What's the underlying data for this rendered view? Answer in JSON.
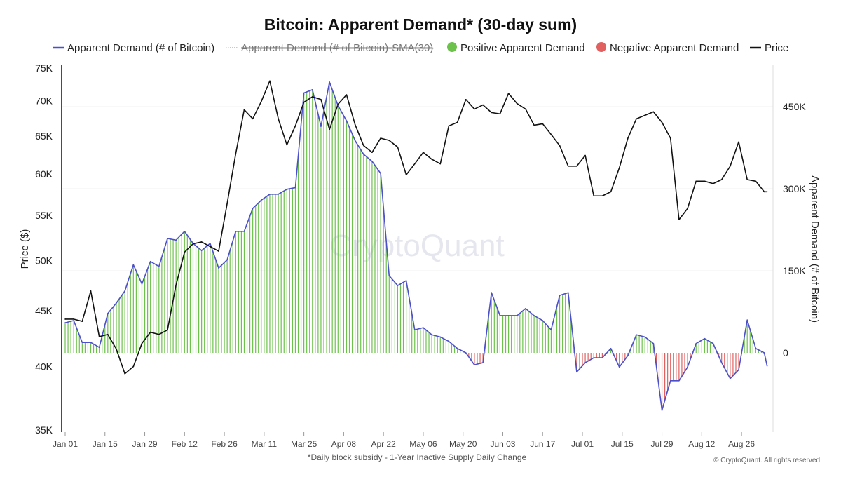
{
  "chart_data": {
    "type": "line",
    "title": "Bitcoin: Apparent Demand* (30-day sum)",
    "footnote": "*Daily block subsidy - 1-Year Inactive Supply Daily Change",
    "copyright": "© CryptoQuant. All rights reserved",
    "watermark": "CryptoQuant",
    "legend": [
      {
        "label": "Apparent Demand (# of Bitcoin)",
        "color": "#4b4fc9",
        "marker": "line"
      },
      {
        "label": "Apparent Demand (# of Bitcoin)-SMA(30)",
        "color": "#b5b5b5",
        "marker": "dotted-line",
        "disabled": true
      },
      {
        "label": "Positive Apparent Demand",
        "color": "#6cc24a",
        "marker": "circle"
      },
      {
        "label": "Negative Apparent Demand",
        "color": "#e0615f",
        "marker": "circle"
      },
      {
        "label": "Price",
        "color": "#111111",
        "marker": "line"
      }
    ],
    "legend_position": "top",
    "x_ticks": [
      "Jan 01",
      "Jan 15",
      "Jan 29",
      "Feb 12",
      "Feb 26",
      "Mar 11",
      "Mar 25",
      "Apr 08",
      "Apr 22",
      "May 06",
      "May 20",
      "Jun 03",
      "Jun 17",
      "Jul 01",
      "Jul 15",
      "Jul 29",
      "Aug 12",
      "Aug 26"
    ],
    "x_tick_dates": [
      "2024-01-01",
      "2024-01-15",
      "2024-01-29",
      "2024-02-12",
      "2024-02-26",
      "2024-03-11",
      "2024-03-25",
      "2024-04-08",
      "2024-04-22",
      "2024-05-06",
      "2024-05-20",
      "2024-06-03",
      "2024-06-17",
      "2024-07-01",
      "2024-07-15",
      "2024-07-29",
      "2024-08-12",
      "2024-08-26"
    ],
    "y_left": {
      "label": "Price ($)",
      "scale": "log",
      "range": [
        35000,
        75000
      ],
      "ticks": [
        "35K",
        "40K",
        "45K",
        "50K",
        "55K",
        "60K",
        "65K",
        "70K",
        "75K"
      ],
      "tick_values": [
        35000,
        40000,
        45000,
        50000,
        55000,
        60000,
        65000,
        70000,
        75000
      ]
    },
    "y_right": {
      "label": "Apparent Demand (# of Bitcoin)",
      "scale": "linear",
      "ticks": [
        "0",
        "150K",
        "300K",
        "450K"
      ],
      "tick_values": [
        0,
        150000,
        300000,
        450000
      ]
    },
    "grid": true,
    "x": [
      "2024-01-01",
      "2024-01-04",
      "2024-01-07",
      "2024-01-10",
      "2024-01-13",
      "2024-01-16",
      "2024-01-19",
      "2024-01-22",
      "2024-01-25",
      "2024-01-28",
      "2024-01-31",
      "2024-02-03",
      "2024-02-06",
      "2024-02-09",
      "2024-02-12",
      "2024-02-15",
      "2024-02-18",
      "2024-02-21",
      "2024-02-24",
      "2024-02-27",
      "2024-03-01",
      "2024-03-04",
      "2024-03-07",
      "2024-03-10",
      "2024-03-13",
      "2024-03-16",
      "2024-03-19",
      "2024-03-22",
      "2024-03-25",
      "2024-03-28",
      "2024-03-31",
      "2024-04-03",
      "2024-04-06",
      "2024-04-09",
      "2024-04-12",
      "2024-04-15",
      "2024-04-18",
      "2024-04-21",
      "2024-04-24",
      "2024-04-27",
      "2024-04-30",
      "2024-05-03",
      "2024-05-06",
      "2024-05-09",
      "2024-05-12",
      "2024-05-15",
      "2024-05-18",
      "2024-05-21",
      "2024-05-24",
      "2024-05-27",
      "2024-05-30",
      "2024-06-02",
      "2024-06-05",
      "2024-06-08",
      "2024-06-11",
      "2024-06-14",
      "2024-06-17",
      "2024-06-20",
      "2024-06-23",
      "2024-06-26",
      "2024-06-29",
      "2024-07-02",
      "2024-07-05",
      "2024-07-08",
      "2024-07-11",
      "2024-07-14",
      "2024-07-17",
      "2024-07-20",
      "2024-07-23",
      "2024-07-26",
      "2024-07-29",
      "2024-08-01",
      "2024-08-04",
      "2024-08-07",
      "2024-08-10",
      "2024-08-13",
      "2024-08-16",
      "2024-08-19",
      "2024-08-22",
      "2024-08-25",
      "2024-08-28",
      "2024-08-31",
      "2024-09-03",
      "2024-09-04"
    ],
    "series": [
      {
        "name": "Apparent Demand (# of Bitcoin)",
        "axis": "right",
        "values": [
          55000,
          59000,
          19000,
          19000,
          10000,
          72000,
          91000,
          113000,
          161000,
          126000,
          167000,
          158000,
          209000,
          206000,
          222000,
          200000,
          187000,
          200000,
          155000,
          170000,
          222000,
          222000,
          264000,
          279000,
          290000,
          290000,
          299000,
          302000,
          475000,
          481000,
          414000,
          495000,
          452000,
          424000,
          388000,
          363000,
          350000,
          328000,
          141000,
          123000,
          132000,
          42000,
          46000,
          33000,
          29000,
          21000,
          8000,
          0,
          -22000,
          -18000,
          110000,
          68000,
          68000,
          68000,
          81000,
          68000,
          59000,
          42000,
          105000,
          110000,
          -35000,
          -18000,
          -9000,
          -9000,
          8000,
          -26000,
          -5000,
          33000,
          29000,
          17000,
          -105000,
          -51000,
          -51000,
          -26000,
          17000,
          26000,
          17000,
          -18000,
          -47000,
          -31000,
          60000,
          8000,
          0,
          -24000
        ]
      },
      {
        "name": "Price",
        "axis": "left",
        "values": [
          44200,
          44200,
          44000,
          46900,
          42600,
          42800,
          41500,
          39400,
          40000,
          42000,
          43000,
          42800,
          43200,
          47500,
          50900,
          51800,
          52000,
          51500,
          51000,
          56400,
          62600,
          68700,
          67400,
          69900,
          73000,
          67400,
          63800,
          66400,
          69800,
          70600,
          70200,
          65900,
          69500,
          70900,
          66600,
          63700,
          62800,
          64700,
          64400,
          63500,
          59900,
          61300,
          62800,
          61900,
          61300,
          66400,
          66900,
          70200,
          68800,
          69400,
          68300,
          68100,
          71100,
          69600,
          68800,
          66500,
          66700,
          65200,
          63700,
          61000,
          61000,
          62400,
          57300,
          57300,
          57800,
          60800,
          64700,
          67400,
          67900,
          68400,
          66900,
          64700,
          54500,
          55800,
          59100,
          59100,
          58800,
          59300,
          61000,
          64200,
          59300,
          59100,
          57800,
          57800
        ]
      }
    ]
  }
}
